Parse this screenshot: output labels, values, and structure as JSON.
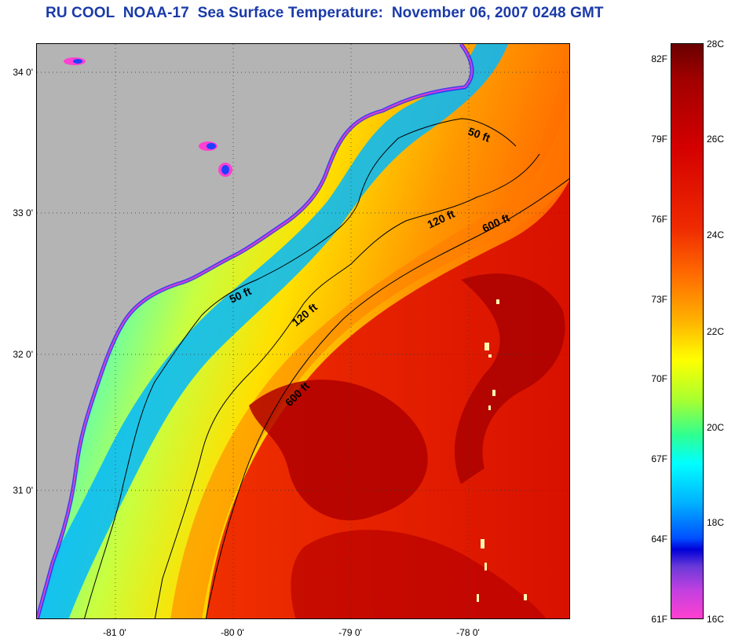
{
  "title": "RU COOL  NOAA-17  Sea Surface Temperature:  November 06, 2007 0248 GMT",
  "map": {
    "lat_labels": [
      "34 0'",
      "33 0'",
      "32 0'",
      "31 0'"
    ],
    "lon_labels": [
      "-81 0'",
      "-80 0'",
      "-79 0'",
      "-78 0'"
    ],
    "contour_labels": [
      "50 ft",
      "120 ft",
      "600 ft",
      "50 ft",
      "120 ft",
      "600 ft"
    ],
    "colors": {
      "land": "#b4b4b4",
      "coast_cold": "#1f4dff",
      "shelf_cyan": "#00e6ff",
      "shelf_yellow": "#ffee00",
      "gulf_stream": "#e81800",
      "warm_core": "#b80000",
      "contour": "#000000",
      "cloud_flag": "#ff40d0"
    }
  },
  "colorbar": {
    "fahrenheit": [
      "82F",
      "79F",
      "76F",
      "73F",
      "70F",
      "67F",
      "64F",
      "61F"
    ],
    "celsius": [
      "28C",
      "26C",
      "24C",
      "22C",
      "20C",
      "18C",
      "16C"
    ]
  }
}
